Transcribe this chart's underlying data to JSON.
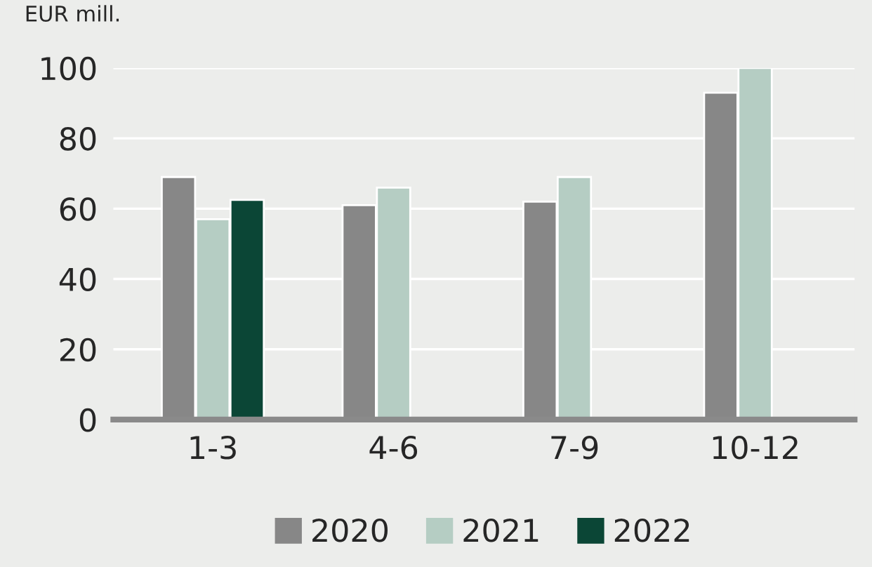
{
  "chart_data": {
    "type": "bar",
    "ylabel": "EUR mill.",
    "categories": [
      "1-3",
      "4-6",
      "7-9",
      "10-12"
    ],
    "series": [
      {
        "name": "2020",
        "color": "#878787",
        "values": [
          69,
          61,
          62,
          93
        ]
      },
      {
        "name": "2021",
        "color": "#b5cdc3",
        "values": [
          57,
          66,
          69,
          100
        ]
      },
      {
        "name": "2022",
        "color": "#0b4636",
        "values": [
          62.5,
          null,
          null,
          null
        ]
      }
    ],
    "ylim": [
      0,
      100
    ],
    "yticks": [
      0,
      20,
      40,
      60,
      80,
      100
    ],
    "grid": "y",
    "legend": "bottom"
  }
}
